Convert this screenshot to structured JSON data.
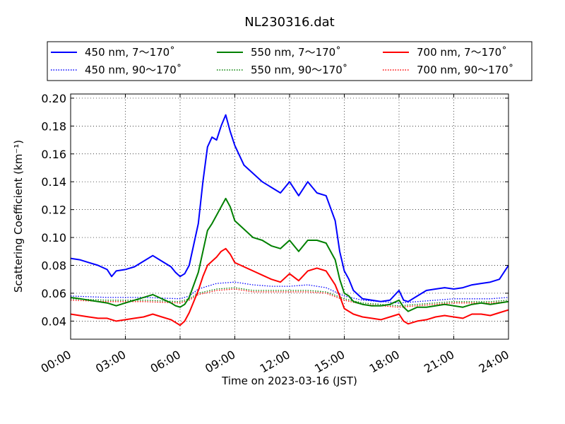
{
  "chart_data": {
    "type": "line",
    "title": "NL230316.dat",
    "xlabel": "Time on 2023-03-16 (JST)",
    "ylabel": "Scattering Coefficient (km⁻¹)",
    "x_unit": "hour of day (JST)",
    "xlim": [
      0,
      24
    ],
    "ylim": [
      0.027,
      0.203
    ],
    "x_ticks": [
      {
        "value": 0,
        "label": "00:00"
      },
      {
        "value": 3,
        "label": "03:00"
      },
      {
        "value": 6,
        "label": "06:00"
      },
      {
        "value": 9,
        "label": "09:00"
      },
      {
        "value": 12,
        "label": "12:00"
      },
      {
        "value": 15,
        "label": "15:00"
      },
      {
        "value": 18,
        "label": "18:00"
      },
      {
        "value": 21,
        "label": "21:00"
      },
      {
        "value": 24,
        "label": "24:00"
      }
    ],
    "y_ticks": [
      {
        "value": 0.04,
        "label": "0.04"
      },
      {
        "value": 0.06,
        "label": "0.06"
      },
      {
        "value": 0.08,
        "label": "0.08"
      },
      {
        "value": 0.1,
        "label": "0.10"
      },
      {
        "value": 0.12,
        "label": "0.12"
      },
      {
        "value": 0.14,
        "label": "0.14"
      },
      {
        "value": 0.16,
        "label": "0.16"
      },
      {
        "value": 0.18,
        "label": "0.18"
      },
      {
        "value": 0.2,
        "label": "0.20"
      }
    ],
    "grid": true,
    "legend_position": "top, above plot",
    "series": [
      {
        "name": "450 nm, 7～170˚",
        "color": "#0000ff",
        "style": "solid",
        "x": [
          0,
          0.5,
          1,
          1.5,
          2,
          2.25,
          2.5,
          3,
          3.5,
          4,
          4.5,
          5,
          5.5,
          5.75,
          6,
          6.25,
          6.5,
          7,
          7.25,
          7.5,
          7.75,
          8,
          8.25,
          8.5,
          8.75,
          9,
          9.5,
          10,
          10.5,
          11,
          11.5,
          12,
          12.5,
          13,
          13.5,
          14,
          14.5,
          14.75,
          15,
          15.25,
          15.5,
          16,
          16.5,
          17,
          17.5,
          18,
          18.25,
          18.5,
          19,
          19.5,
          20,
          20.5,
          21,
          21.5,
          22,
          22.5,
          23,
          23.5,
          24
        ],
        "values": [
          0.085,
          0.084,
          0.082,
          0.08,
          0.077,
          0.072,
          0.076,
          0.077,
          0.079,
          0.083,
          0.087,
          0.083,
          0.079,
          0.075,
          0.072,
          0.074,
          0.08,
          0.11,
          0.14,
          0.165,
          0.172,
          0.17,
          0.18,
          0.188,
          0.176,
          0.166,
          0.152,
          0.146,
          0.14,
          0.136,
          0.132,
          0.14,
          0.13,
          0.14,
          0.132,
          0.13,
          0.112,
          0.09,
          0.076,
          0.07,
          0.062,
          0.056,
          0.055,
          0.054,
          0.055,
          0.062,
          0.055,
          0.054,
          0.058,
          0.062,
          0.063,
          0.064,
          0.063,
          0.064,
          0.066,
          0.067,
          0.068,
          0.07,
          0.08
        ]
      },
      {
        "name": "450 nm, 90～170˚",
        "color": "#0000ff",
        "style": "dotted",
        "x": [
          0,
          2,
          4,
          6,
          6.5,
          7,
          8,
          9,
          10,
          11,
          12,
          13,
          14,
          15,
          16,
          17,
          18,
          19,
          20,
          21,
          22,
          23,
          24
        ],
        "values": [
          0.058,
          0.057,
          0.057,
          0.056,
          0.058,
          0.063,
          0.067,
          0.068,
          0.066,
          0.065,
          0.065,
          0.066,
          0.064,
          0.058,
          0.055,
          0.054,
          0.053,
          0.054,
          0.055,
          0.056,
          0.056,
          0.056,
          0.057
        ]
      },
      {
        "name": "550 nm, 7～170˚",
        "color": "#008000",
        "style": "solid",
        "x": [
          0,
          0.5,
          1,
          1.5,
          2,
          2.5,
          3,
          3.5,
          4,
          4.5,
          5,
          5.5,
          5.75,
          6,
          6.25,
          6.5,
          7,
          7.25,
          7.5,
          7.75,
          8,
          8.25,
          8.5,
          8.75,
          9,
          9.5,
          10,
          10.5,
          11,
          11.5,
          12,
          12.5,
          13,
          13.5,
          14,
          14.5,
          14.75,
          15,
          15.25,
          15.5,
          16,
          16.5,
          17,
          17.5,
          18,
          18.25,
          18.5,
          19,
          19.5,
          20,
          20.5,
          21,
          21.5,
          22,
          22.5,
          23,
          23.5,
          24
        ],
        "values": [
          0.057,
          0.056,
          0.055,
          0.054,
          0.053,
          0.051,
          0.053,
          0.055,
          0.057,
          0.059,
          0.056,
          0.053,
          0.051,
          0.05,
          0.052,
          0.057,
          0.075,
          0.09,
          0.105,
          0.11,
          0.116,
          0.122,
          0.128,
          0.122,
          0.112,
          0.106,
          0.1,
          0.098,
          0.094,
          0.092,
          0.098,
          0.09,
          0.098,
          0.098,
          0.096,
          0.084,
          0.07,
          0.06,
          0.058,
          0.054,
          0.052,
          0.051,
          0.051,
          0.052,
          0.055,
          0.05,
          0.047,
          0.05,
          0.05,
          0.051,
          0.052,
          0.051,
          0.05,
          0.052,
          0.053,
          0.052,
          0.053,
          0.054
        ]
      },
      {
        "name": "550 nm, 90～170˚",
        "color": "#008000",
        "style": "dotted",
        "x": [
          0,
          2,
          4,
          6,
          6.5,
          7,
          8,
          9,
          10,
          11,
          12,
          13,
          14,
          15,
          16,
          17,
          18,
          19,
          20,
          21,
          22,
          23,
          24
        ],
        "values": [
          0.056,
          0.055,
          0.055,
          0.054,
          0.056,
          0.06,
          0.063,
          0.064,
          0.062,
          0.062,
          0.062,
          0.062,
          0.061,
          0.056,
          0.053,
          0.052,
          0.051,
          0.052,
          0.053,
          0.054,
          0.054,
          0.054,
          0.055
        ]
      },
      {
        "name": "700 nm, 7～170˚",
        "color": "#ff0000",
        "style": "solid",
        "x": [
          0,
          0.5,
          1,
          1.5,
          2,
          2.5,
          3,
          3.5,
          4,
          4.5,
          5,
          5.5,
          5.75,
          6,
          6.25,
          6.5,
          7,
          7.25,
          7.5,
          7.75,
          8,
          8.25,
          8.5,
          8.75,
          9,
          9.5,
          10,
          10.5,
          11,
          11.5,
          12,
          12.5,
          13,
          13.5,
          14,
          14.5,
          14.75,
          15,
          15.25,
          15.5,
          16,
          16.5,
          17,
          17.5,
          18,
          18.25,
          18.5,
          19,
          19.5,
          20,
          20.5,
          21,
          21.5,
          22,
          22.5,
          23,
          23.5,
          24
        ],
        "values": [
          0.045,
          0.044,
          0.043,
          0.042,
          0.042,
          0.04,
          0.041,
          0.042,
          0.043,
          0.045,
          0.043,
          0.041,
          0.039,
          0.037,
          0.04,
          0.046,
          0.062,
          0.072,
          0.08,
          0.083,
          0.086,
          0.09,
          0.092,
          0.088,
          0.082,
          0.079,
          0.076,
          0.073,
          0.07,
          0.068,
          0.074,
          0.069,
          0.076,
          0.078,
          0.076,
          0.066,
          0.058,
          0.049,
          0.047,
          0.045,
          0.043,
          0.042,
          0.041,
          0.043,
          0.045,
          0.04,
          0.038,
          0.04,
          0.041,
          0.043,
          0.044,
          0.043,
          0.042,
          0.045,
          0.045,
          0.044,
          0.046,
          0.048
        ]
      },
      {
        "name": "700 nm, 90～170˚",
        "color": "#ff0000",
        "style": "dotted",
        "x": [
          0,
          2,
          4,
          6,
          6.5,
          7,
          8,
          9,
          10,
          11,
          12,
          13,
          14,
          15,
          16,
          17,
          18,
          19,
          20,
          21,
          22,
          23,
          24
        ],
        "values": [
          0.055,
          0.054,
          0.054,
          0.053,
          0.055,
          0.059,
          0.062,
          0.063,
          0.061,
          0.061,
          0.061,
          0.061,
          0.06,
          0.055,
          0.052,
          0.051,
          0.05,
          0.051,
          0.052,
          0.053,
          0.053,
          0.053,
          0.054
        ]
      }
    ]
  }
}
